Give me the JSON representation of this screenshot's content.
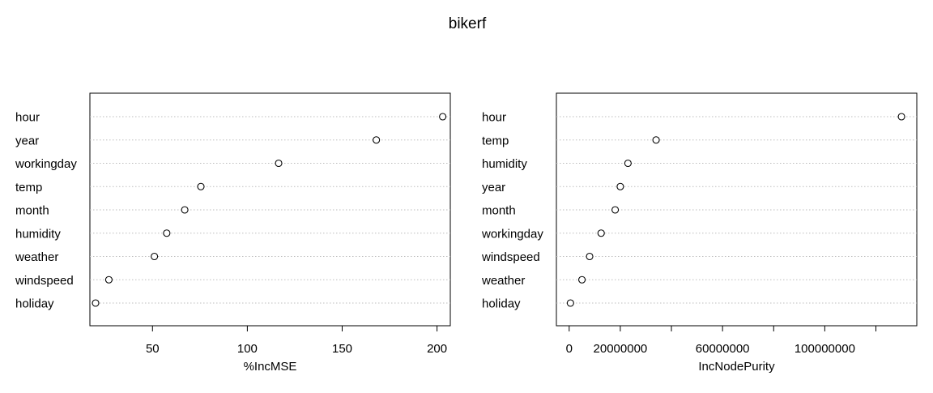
{
  "title": "bikerf",
  "chart_data": [
    {
      "type": "scatter",
      "subtype": "dotchart",
      "xlabel": "%IncMSE",
      "categories": [
        "hour",
        "year",
        "workingday",
        "temp",
        "month",
        "humidity",
        "weather",
        "windspeed",
        "holiday"
      ],
      "values": [
        203,
        168,
        116.5,
        75.5,
        67,
        57.5,
        51,
        27,
        20
      ],
      "xlim": [
        17,
        207
      ],
      "xticks": [
        50,
        100,
        150,
        200
      ],
      "xtick_labels": [
        "50",
        "100",
        "150",
        "200"
      ],
      "grid": "dotted horizontal lines"
    },
    {
      "type": "scatter",
      "subtype": "dotchart",
      "xlabel": "IncNodePurity",
      "categories": [
        "hour",
        "temp",
        "humidity",
        "year",
        "month",
        "workingday",
        "windspeed",
        "weather",
        "holiday"
      ],
      "values": [
        130000000,
        34000000,
        23000000,
        20000000,
        18000000,
        12500000,
        8000000,
        5000000,
        500000
      ],
      "xlim": [
        -5000000,
        136000000
      ],
      "xticks": [
        0,
        20000000,
        40000000,
        60000000,
        80000000,
        100000000,
        120000000
      ],
      "xtick_labels": [
        "0",
        "20000000",
        "",
        "60000000",
        "",
        "100000000",
        ""
      ],
      "grid": "dotted horizontal lines"
    }
  ]
}
